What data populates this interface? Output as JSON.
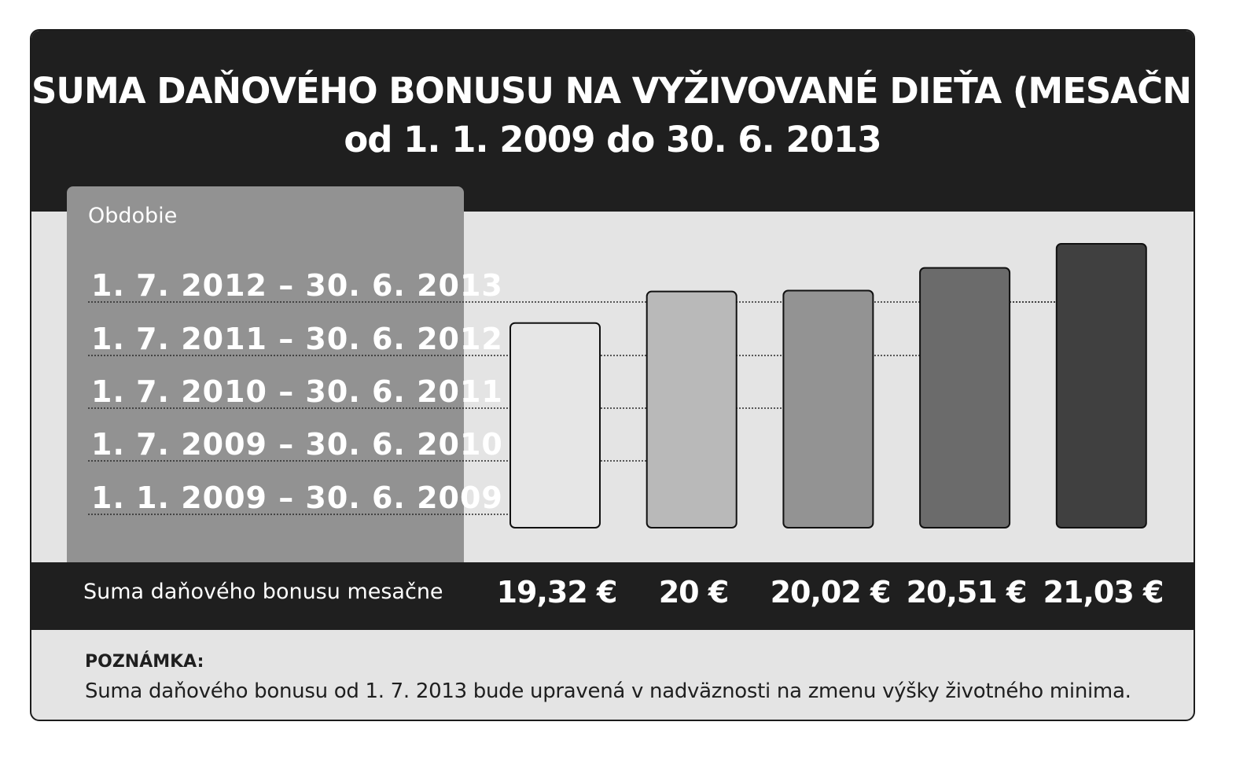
{
  "header": {
    "title": "SUMA DAŇOVÉHO BONUSU NA VYŽIVOVANÉ DIEŤA (MESAČNE)",
    "subtitle": "od 1. 1. 2009 do 30. 6. 2013"
  },
  "period_panel": {
    "heading": "Obdobie"
  },
  "value_row": {
    "label": "Suma daňového bonusu mesačne",
    "values": [
      "19,32 €",
      "20 €",
      "20,02 €",
      "20,51 €",
      "21,03 €"
    ]
  },
  "note": {
    "heading": "POZNÁMKA:",
    "text": "Suma daňového bonusu od 1. 7. 2013 bude upravená v nadväznosti na zmenu výšky životného minima."
  },
  "chart_data": {
    "type": "bar",
    "categories": [
      "1. 1. 2009 – 30. 6. 2009",
      "1. 7. 2009 – 30. 6. 2010",
      "1. 7. 2010 – 30. 6. 2011",
      "1. 7. 2011 – 30. 6. 2012",
      "1. 7. 2012 – 30. 6. 2013"
    ],
    "values": [
      19.32,
      20,
      20.02,
      20.51,
      21.03
    ],
    "unit": "€",
    "colors": [
      "#e6e6e6",
      "#b9b9b9",
      "#939393",
      "#6b6b6b",
      "#404040"
    ],
    "ylim": [
      14.9,
      21.03
    ],
    "grid": true
  }
}
